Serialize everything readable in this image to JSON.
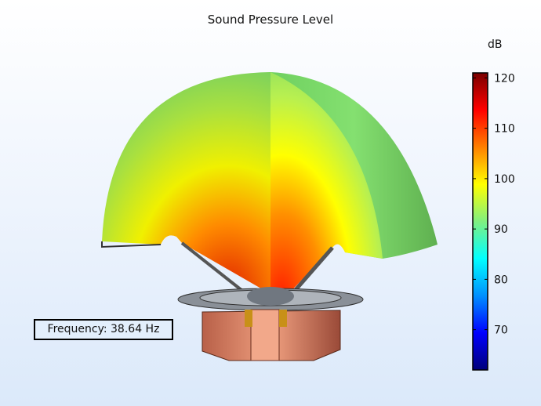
{
  "chart_data": {
    "type": "heatmap",
    "title": "Sound Pressure Level",
    "colorbar": {
      "unit": "dB",
      "range": [
        62,
        121
      ],
      "ticks": [
        70,
        80,
        90,
        100,
        110,
        120
      ],
      "tick_labels": [
        "70",
        "80",
        "90",
        "100",
        "110",
        "120"
      ],
      "colormap": "rainbow",
      "colors": [
        "#00007a",
        "#0000ff",
        "#0090ff",
        "#00ffff",
        "#80f080",
        "#ffff00",
        "#ff8000",
        "#ff0000",
        "#7a0000"
      ]
    },
    "annotation": "Frequency: 38.64 Hz"
  }
}
